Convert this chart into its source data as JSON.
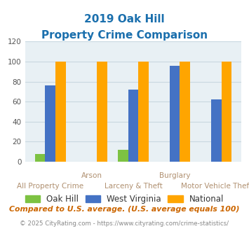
{
  "title_line1": "2019 Oak Hill",
  "title_line2": "Property Crime Comparison",
  "groups": [
    {
      "label_top": "",
      "label_bottom": "All Property Crime",
      "oak_hill": 8,
      "west_virginia": 76,
      "national": 100
    },
    {
      "label_top": "Arson",
      "label_bottom": "",
      "oak_hill": 0,
      "west_virginia": 0,
      "national": 100
    },
    {
      "label_top": "",
      "label_bottom": "Larceny & Theft",
      "oak_hill": 12,
      "west_virginia": 72,
      "national": 100
    },
    {
      "label_top": "Burglary",
      "label_bottom": "",
      "oak_hill": 0,
      "west_virginia": 96,
      "national": 100
    },
    {
      "label_top": "",
      "label_bottom": "Motor Vehicle Theft",
      "oak_hill": 0,
      "west_virginia": 62,
      "national": 100
    }
  ],
  "color_oak_hill": "#7dc242",
  "color_west_virginia": "#4472c4",
  "color_national": "#ffa500",
  "color_title": "#1a6fad",
  "color_xlabel_top": "#b09070",
  "color_xlabel_bottom": "#b09070",
  "color_grid": "#c8d8e0",
  "color_background": "#e8f0f4",
  "ylim": [
    0,
    120
  ],
  "yticks": [
    0,
    20,
    40,
    60,
    80,
    100,
    120
  ],
  "bar_width": 0.25,
  "footer_text": "Compared to U.S. average. (U.S. average equals 100)",
  "copyright_text": "© 2025 CityRating.com - https://www.cityrating.com/crime-statistics/",
  "legend_labels": [
    "Oak Hill",
    "West Virginia",
    "National"
  ]
}
